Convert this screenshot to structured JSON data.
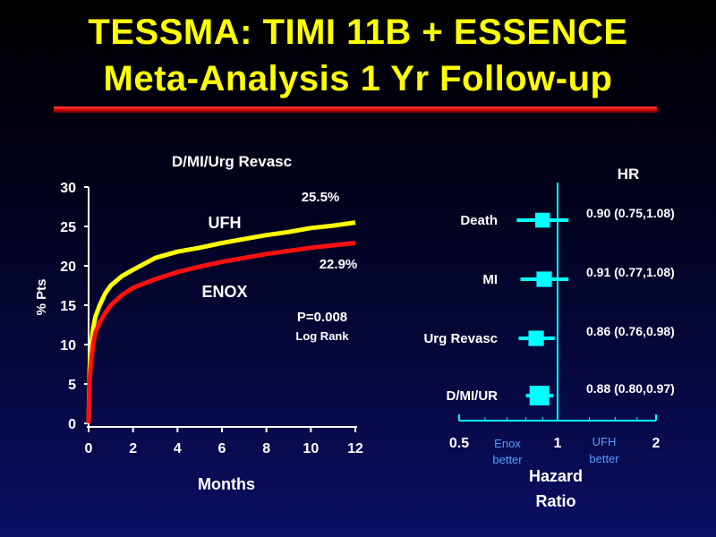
{
  "slide": {
    "title_line1": "TESSMA:  TIMI 11B + ESSENCE",
    "title_line2": "Meta-Analysis 1 Yr Follow-up"
  },
  "colors": {
    "title": "#ffff00",
    "rule": "#cc0000",
    "ufh_line": "#ffff00",
    "enox_line": "#ff1010",
    "forest_marker": "#00ffff",
    "text": "#ffffff",
    "better_text": "#4fa0ff"
  },
  "chart_data": [
    {
      "type": "line",
      "title": "D/MI/Urg Revasc",
      "xlabel": "Months",
      "ylabel": "% Pts",
      "xlim": [
        0,
        12
      ],
      "ylim": [
        0,
        30
      ],
      "xticks": [
        "0",
        "2",
        "4",
        "6",
        "8",
        "10",
        "12"
      ],
      "yticks": [
        "0",
        "5",
        "10",
        "15",
        "20",
        "25",
        "30"
      ],
      "grid": false,
      "series": [
        {
          "name": "UFH",
          "end_label": "25.5%",
          "x": [
            0,
            0.05,
            0.1,
            0.2,
            0.3,
            0.5,
            0.75,
            1,
            1.5,
            2,
            3,
            4,
            5,
            6,
            7,
            8,
            9,
            10,
            11,
            12
          ],
          "y": [
            0,
            7,
            9.5,
            12,
            13.5,
            15,
            16.5,
            17.5,
            18.7,
            19.5,
            21,
            21.8,
            22.3,
            22.9,
            23.4,
            23.9,
            24.3,
            24.8,
            25.1,
            25.5
          ]
        },
        {
          "name": "ENOX",
          "end_label": "22.9%",
          "x": [
            0,
            0.05,
            0.1,
            0.2,
            0.3,
            0.5,
            0.75,
            1,
            1.5,
            2,
            3,
            4,
            5,
            6,
            7,
            8,
            9,
            10,
            11,
            12
          ],
          "y": [
            0,
            5.5,
            7.5,
            10,
            11.5,
            12.8,
            14,
            15,
            16.3,
            17.2,
            18.3,
            19.2,
            19.9,
            20.5,
            21,
            21.5,
            21.9,
            22.3,
            22.6,
            22.9
          ]
        }
      ],
      "annotations": [
        "P=0.008",
        "Log Rank"
      ]
    },
    {
      "type": "scatter",
      "title": "HR",
      "xlabel": "Hazard Ratio",
      "xticks": [
        "0.5",
        "1",
        "2"
      ],
      "xlim": [
        0.5,
        2
      ],
      "xscale": "log",
      "reference_line": 1,
      "left_note": [
        "Enox",
        "better"
      ],
      "right_note": [
        "UFH",
        "better"
      ],
      "rows": [
        {
          "label": "Death",
          "hr": 0.9,
          "lo": 0.75,
          "hi": 1.08,
          "text": "0.90 (0.75,1.08)",
          "weight": 0.55
        },
        {
          "label": "MI",
          "hr": 0.91,
          "lo": 0.77,
          "hi": 1.08,
          "text": "0.91 (0.77,1.08)",
          "weight": 0.6
        },
        {
          "label": "Urg Revasc",
          "hr": 0.86,
          "lo": 0.76,
          "hi": 0.98,
          "text": "0.86 (0.76,0.98)",
          "weight": 0.6
        },
        {
          "label": "D/MI/UR",
          "hr": 0.88,
          "lo": 0.8,
          "hi": 0.97,
          "text": "0.88 (0.80,0.97)",
          "weight": 1.0
        }
      ]
    }
  ]
}
